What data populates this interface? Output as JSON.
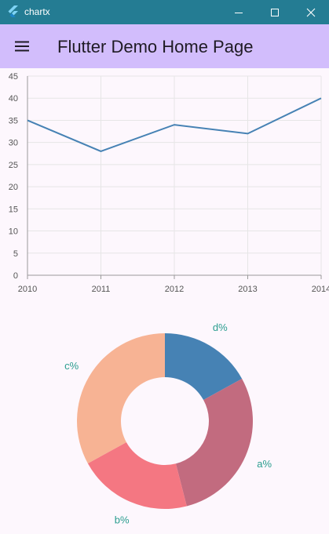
{
  "window": {
    "title": "chartx"
  },
  "app_bar": {
    "title": "Flutter Demo Home Page",
    "background": "#d2bdfc"
  },
  "colors": {
    "titlebar": "#247c93",
    "line": "#4682b4",
    "pie": [
      "#4682b4",
      "#c26b7f",
      "#f47782",
      "#f7b394"
    ],
    "pie_label": "#2a9d8f"
  },
  "chart_data": [
    {
      "type": "line",
      "x": [
        "2010",
        "2011",
        "2012",
        "2013",
        "2014"
      ],
      "series": [
        {
          "values": [
            35,
            28,
            34,
            32,
            40
          ]
        }
      ],
      "ylim": [
        0,
        45
      ],
      "yticks": [
        0,
        5,
        10,
        15,
        20,
        25,
        30,
        35,
        40,
        45
      ],
      "grid": true
    },
    {
      "type": "pie",
      "donut": true,
      "labels": [
        "d%",
        "a%",
        "b%",
        "c%"
      ],
      "values": [
        17,
        29,
        21,
        33
      ]
    }
  ]
}
